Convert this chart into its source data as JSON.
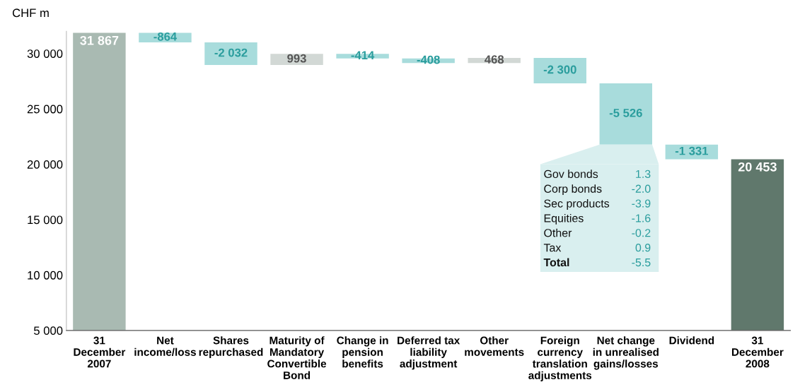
{
  "chart_data": {
    "type": "bar",
    "ylabel": "CHF m",
    "categories": [
      "31\nDecember\n2007",
      "Net\nincome/loss",
      "Shares\nrepurchased",
      "Maturity of\nMandatory\nConvertible\nBond",
      "Change in\npension\nbenefits",
      "Deferred tax\nliability\nadjustment",
      "Other\nmovements",
      "Foreign\ncurrency\ntranslation\nadjustments",
      "Net change\nin unrealised\ngains/losses",
      "Dividend",
      "31\nDecember\n2008"
    ],
    "values": [
      31867,
      -864,
      -2032,
      993,
      -414,
      -408,
      468,
      -2300,
      -5526,
      -1331,
      20453
    ],
    "base": [
      0,
      31867,
      31003,
      28971,
      29964,
      29550,
      29142,
      29610,
      27310,
      21784,
      0
    ],
    "colors": [
      "#a9bab2",
      "#a8dcdc",
      "#a8dcdc",
      "#d2d8d5",
      "#a8dcdc",
      "#a8dcdc",
      "#d2d8d5",
      "#a8dcdc",
      "#a8dcdc",
      "#a8dcdc",
      "#60786c"
    ],
    "value_labels": [
      "31 867",
      "-864",
      "-2 032",
      "993",
      "-414",
      "-408",
      "468",
      "-2 300",
      "-5 526",
      "-1 331",
      "20 453"
    ],
    "ylim": [
      5000,
      32000
    ],
    "yticks": [
      {
        "value": 5000,
        "label": "5 000"
      },
      {
        "value": 10000,
        "label": "10 000"
      },
      {
        "value": 15000,
        "label": "15 000"
      },
      {
        "value": 20000,
        "label": "20 000"
      },
      {
        "value": 25000,
        "label": "25 000"
      },
      {
        "value": 30000,
        "label": "30 000"
      }
    ],
    "grid": false,
    "annotations": [
      "Gov bonds 1.3",
      "Corp bonds -2.0",
      "Sec products -3.9",
      "Equities -1.6",
      "Other -0.2",
      "Tax 0.9",
      "Total -5.5"
    ]
  }
}
